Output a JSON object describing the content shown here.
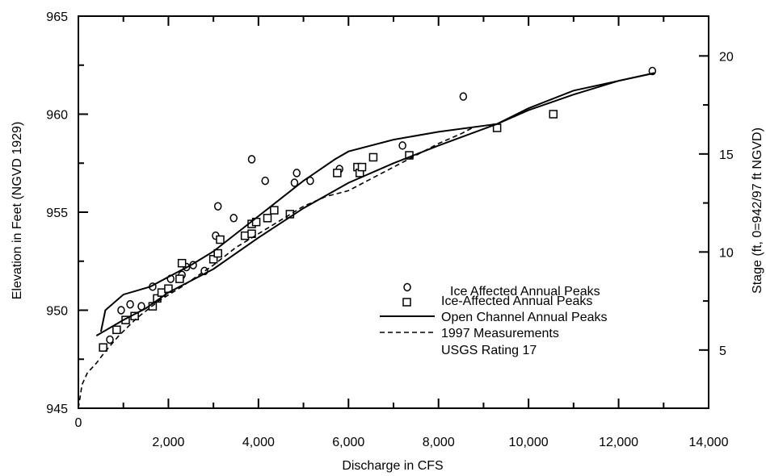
{
  "chart_data": {
    "type": "scatter",
    "title": "",
    "xlabel": "Discharge in CFS",
    "ylabel": "Elevation in Feet (NGVD 1929)",
    "y2label": "Stage (ft, 0=942/97 ft NGVD)",
    "xlim": [
      0,
      14000
    ],
    "ylim": [
      945,
      965
    ],
    "y2lim": [
      2.03,
      22.03
    ],
    "grid": false,
    "legend_position": "center-right",
    "x_ticks": [
      {
        "value": 0,
        "label": "0"
      },
      {
        "value": 2000,
        "label": "2,000"
      },
      {
        "value": 4000,
        "label": "4,000"
      },
      {
        "value": 6000,
        "label": "6,000"
      },
      {
        "value": 8000,
        "label": "8,000"
      },
      {
        "value": 10000,
        "label": "10,000"
      },
      {
        "value": 12000,
        "label": "12,000"
      },
      {
        "value": 14000,
        "label": "14,000"
      }
    ],
    "y_ticks": [
      {
        "value": 945,
        "label": "945"
      },
      {
        "value": 950,
        "label": "950"
      },
      {
        "value": 955,
        "label": "955"
      },
      {
        "value": 960,
        "label": "960"
      },
      {
        "value": 965,
        "label": "965"
      }
    ],
    "y2_ticks": [
      {
        "value": 5,
        "label": "5"
      },
      {
        "value": 10,
        "label": "10"
      },
      {
        "value": 15,
        "label": "15"
      },
      {
        "value": 20,
        "label": "20"
      }
    ],
    "legend": [
      {
        "marker": "circle",
        "label": "Ice Affected Annual Peaks"
      },
      {
        "marker": "square",
        "label": "Ice-Affected Annual Peaks"
      },
      {
        "marker": "solid-line",
        "label": "Open Channel Annual Peaks"
      },
      {
        "marker": "dashed-line",
        "label": "1997 Measurements"
      },
      {
        "marker": "none",
        "label": "USGS Rating 17"
      }
    ],
    "series": [
      {
        "name": "Ice Affected Annual Peaks",
        "marker": "circle",
        "points": [
          [
            700,
            948.5
          ],
          [
            950,
            950.0
          ],
          [
            1150,
            950.3
          ],
          [
            1400,
            950.2
          ],
          [
            1650,
            951.2
          ],
          [
            2050,
            951.6
          ],
          [
            2300,
            951.8
          ],
          [
            2400,
            952.2
          ],
          [
            2550,
            952.3
          ],
          [
            2800,
            952.0
          ],
          [
            3050,
            953.8
          ],
          [
            3100,
            955.3
          ],
          [
            3450,
            954.7
          ],
          [
            3850,
            957.7
          ],
          [
            4150,
            956.6
          ],
          [
            4800,
            956.5
          ],
          [
            4850,
            957.0
          ],
          [
            5150,
            956.6
          ],
          [
            5800,
            957.2
          ],
          [
            7200,
            958.4
          ],
          [
            8550,
            960.9
          ],
          [
            12750,
            962.2
          ]
        ]
      },
      {
        "name": "Ice-Affected Annual Peaks",
        "marker": "square",
        "points": [
          [
            550,
            948.1
          ],
          [
            850,
            949.0
          ],
          [
            1050,
            949.5
          ],
          [
            1250,
            949.7
          ],
          [
            1650,
            950.2
          ],
          [
            1750,
            950.6
          ],
          [
            1850,
            950.9
          ],
          [
            2000,
            951.1
          ],
          [
            2250,
            951.6
          ],
          [
            2300,
            952.4
          ],
          [
            3000,
            952.6
          ],
          [
            3100,
            952.9
          ],
          [
            3150,
            953.6
          ],
          [
            3700,
            953.8
          ],
          [
            3850,
            953.9
          ],
          [
            3850,
            954.4
          ],
          [
            3950,
            954.5
          ],
          [
            4200,
            954.7
          ],
          [
            4350,
            955.1
          ],
          [
            4700,
            954.9
          ],
          [
            5750,
            957.0
          ],
          [
            6200,
            957.3
          ],
          [
            6250,
            957.0
          ],
          [
            6300,
            957.3
          ],
          [
            6550,
            957.8
          ],
          [
            7350,
            957.9
          ],
          [
            9300,
            959.3
          ],
          [
            10550,
            960.0
          ]
        ]
      },
      {
        "name": "Open Channel Annual Peaks",
        "style": "solid",
        "points": [
          [
            500,
            948.9
          ],
          [
            600,
            950.0
          ],
          [
            1000,
            950.8
          ],
          [
            1600,
            951.2
          ],
          [
            2000,
            951.7
          ],
          [
            2500,
            952.3
          ],
          [
            3000,
            953.0
          ],
          [
            4000,
            954.8
          ],
          [
            5000,
            956.6
          ],
          [
            5700,
            957.7
          ],
          [
            6000,
            958.1
          ],
          [
            7000,
            958.7
          ],
          [
            8000,
            959.1
          ],
          [
            9300,
            959.5
          ],
          [
            10000,
            960.3
          ],
          [
            11000,
            961.2
          ],
          [
            12000,
            961.7
          ],
          [
            12800,
            962.1
          ]
        ]
      },
      {
        "name": "1997 Measurements",
        "style": "solid",
        "points": [
          [
            400,
            948.7
          ],
          [
            1000,
            949.5
          ],
          [
            1500,
            950.1
          ],
          [
            2000,
            950.9
          ],
          [
            3000,
            952.1
          ],
          [
            4000,
            953.7
          ],
          [
            5000,
            955.2
          ],
          [
            6000,
            956.5
          ],
          [
            7000,
            957.5
          ],
          [
            8000,
            958.4
          ],
          [
            9300,
            959.5
          ],
          [
            10000,
            960.2
          ],
          [
            11000,
            961.0
          ],
          [
            12000,
            961.7
          ],
          [
            12800,
            962.1
          ]
        ]
      },
      {
        "name": "USGS Rating 17",
        "style": "dashed",
        "points": [
          [
            0,
            945.0
          ],
          [
            80,
            946.2
          ],
          [
            200,
            946.8
          ],
          [
            400,
            947.3
          ],
          [
            600,
            947.9
          ],
          [
            900,
            948.7
          ],
          [
            1300,
            949.6
          ],
          [
            1800,
            950.5
          ],
          [
            2300,
            951.2
          ],
          [
            3000,
            952.3
          ],
          [
            3500,
            953.2
          ],
          [
            4000,
            953.9
          ],
          [
            4500,
            954.6
          ],
          [
            5000,
            955.3
          ],
          [
            5500,
            955.8
          ],
          [
            6000,
            956.1
          ],
          [
            6500,
            956.7
          ],
          [
            7000,
            957.3
          ],
          [
            7500,
            957.9
          ],
          [
            8000,
            958.5
          ],
          [
            8500,
            959.0
          ],
          [
            8750,
            959.3
          ]
        ]
      }
    ]
  }
}
